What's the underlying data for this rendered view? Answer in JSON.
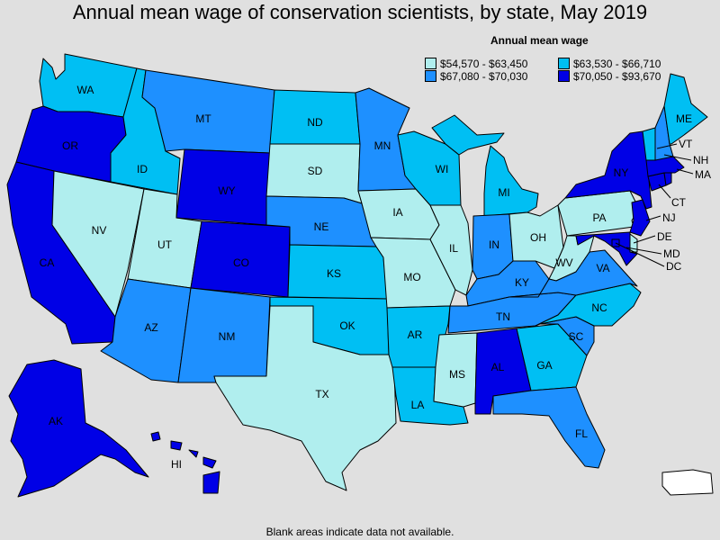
{
  "title": "Annual mean wage of conservation scientists, by state, May 2019",
  "legend": {
    "title": "Annual mean wage",
    "bins": [
      {
        "range": "$54,570 - $63,450",
        "color": "#b0eeee"
      },
      {
        "range": "$63,530 - $66,710",
        "color": "#00bff3"
      },
      {
        "range": "$67,080 - $70,030",
        "color": "#1e90ff"
      },
      {
        "range": "$70,050 - $93,670",
        "color": "#0000e6"
      }
    ]
  },
  "no_data_color": "#ffffff",
  "footnote": "Blank areas indicate data not available.",
  "states": {
    "WA": {
      "label": "WA",
      "bin": 1
    },
    "OR": {
      "label": "OR",
      "bin": 3
    },
    "CA": {
      "label": "CA",
      "bin": 3
    },
    "ID": {
      "label": "ID",
      "bin": 1
    },
    "NV": {
      "label": "NV",
      "bin": 0
    },
    "UT": {
      "label": "UT",
      "bin": 0
    },
    "AZ": {
      "label": "AZ",
      "bin": 2
    },
    "MT": {
      "label": "MT",
      "bin": 2
    },
    "WY": {
      "label": "WY",
      "bin": 3
    },
    "CO": {
      "label": "CO",
      "bin": 3
    },
    "NM": {
      "label": "NM",
      "bin": 2
    },
    "ND": {
      "label": "ND",
      "bin": 1
    },
    "SD": {
      "label": "SD",
      "bin": 0
    },
    "NE": {
      "label": "NE",
      "bin": 2
    },
    "KS": {
      "label": "KS",
      "bin": 1
    },
    "OK": {
      "label": "OK",
      "bin": 1
    },
    "TX": {
      "label": "TX",
      "bin": 0
    },
    "MN": {
      "label": "MN",
      "bin": 2
    },
    "IA": {
      "label": "IA",
      "bin": 0
    },
    "MO": {
      "label": "MO",
      "bin": 0
    },
    "AR": {
      "label": "AR",
      "bin": 1
    },
    "LA": {
      "label": "LA",
      "bin": 1
    },
    "WI": {
      "label": "WI",
      "bin": 1
    },
    "IL": {
      "label": "IL",
      "bin": 0
    },
    "MS": {
      "label": "MS",
      "bin": 0
    },
    "MI": {
      "label": "MI",
      "bin": 1
    },
    "IN": {
      "label": "IN",
      "bin": 2
    },
    "KY": {
      "label": "KY",
      "bin": 2
    },
    "TN": {
      "label": "TN",
      "bin": 2
    },
    "AL": {
      "label": "AL",
      "bin": 3
    },
    "OH": {
      "label": "OH",
      "bin": 0
    },
    "WV": {
      "label": "WV",
      "bin": 0
    },
    "GA": {
      "label": "GA",
      "bin": 1
    },
    "FL": {
      "label": "FL",
      "bin": 2
    },
    "SC": {
      "label": "SC",
      "bin": 2
    },
    "NC": {
      "label": "NC",
      "bin": 1
    },
    "VA": {
      "label": "VA",
      "bin": 2
    },
    "PA": {
      "label": "PA",
      "bin": 0
    },
    "NY": {
      "label": "NY",
      "bin": 3
    },
    "ME": {
      "label": "ME",
      "bin": 1
    },
    "VT": {
      "label": "VT",
      "bin": 1
    },
    "NH": {
      "label": "NH",
      "bin": 2
    },
    "MA": {
      "label": "MA",
      "bin": 3
    },
    "CT": {
      "label": "CT",
      "bin": 3
    },
    "RI": {
      "label": "",
      "bin": 3
    },
    "NJ": {
      "label": "NJ",
      "bin": 3
    },
    "DE": {
      "label": "DE",
      "bin": 0
    },
    "MD": {
      "label": "MD",
      "bin": 3
    },
    "DC": {
      "label": "DC",
      "bin": 3
    },
    "AK": {
      "label": "AK",
      "bin": 3
    },
    "HI": {
      "label": "HI",
      "bin": 3
    },
    "PR": {
      "label": "",
      "bin": null
    }
  }
}
